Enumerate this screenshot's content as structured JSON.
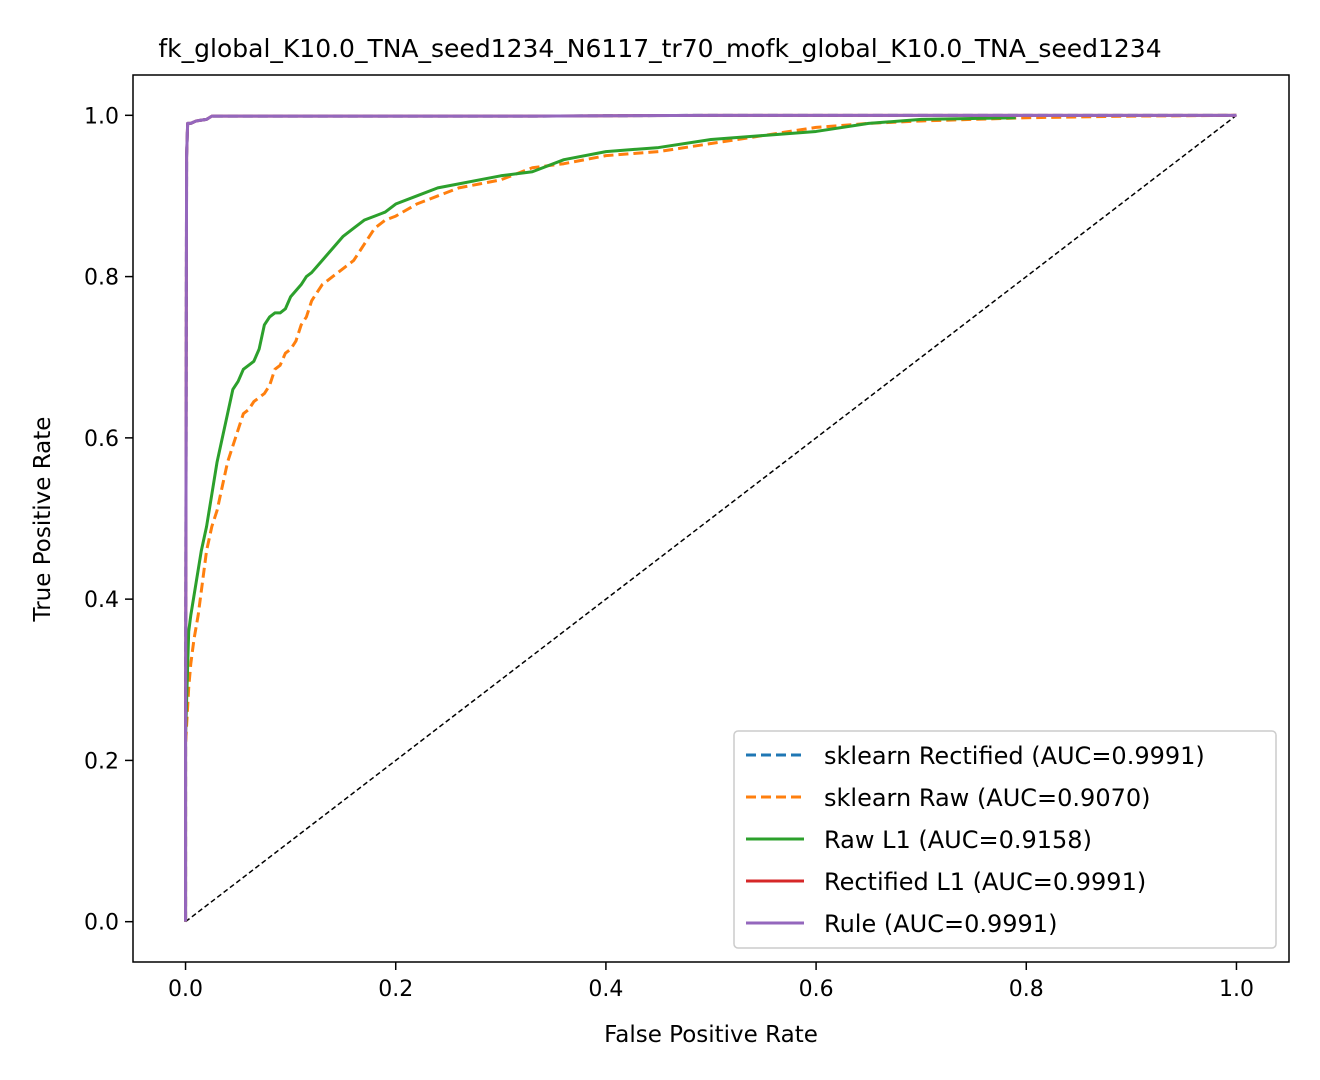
{
  "chart_data": {
    "type": "line",
    "title": "fk_global_K10.0_TNA_seed1234_N6117_tr70_mofk_global_K10.0_TNA_seed1234",
    "xlabel": "False Positive Rate",
    "ylabel": "True Positive Rate",
    "xlim": [
      -0.05,
      1.05
    ],
    "ylim": [
      -0.05,
      1.05
    ],
    "xticks": [
      "0.0",
      "0.2",
      "0.4",
      "0.6",
      "0.8",
      "1.0"
    ],
    "yticks": [
      "0.0",
      "0.2",
      "0.4",
      "0.6",
      "0.8",
      "1.0"
    ],
    "grid": false,
    "legend_position": "lower-right",
    "diagonal": {
      "x": [
        0,
        1
      ],
      "y": [
        0,
        1
      ],
      "color": "#000000",
      "style": "dashed"
    },
    "series": [
      {
        "name": "sklearn Rectified (AUC=0.9991)",
        "color": "#1f77b4",
        "style": "dashed",
        "x": [
          0,
          0,
          0.001,
          0.002,
          0.005,
          0.01,
          0.02,
          0.025,
          0.1,
          0.33,
          0.5,
          1.0
        ],
        "y": [
          0,
          0.22,
          0.95,
          0.99,
          0.99,
          0.993,
          0.995,
          0.999,
          0.999,
          0.999,
          1.0,
          1.0
        ]
      },
      {
        "name": "sklearn Raw (AUC=0.9070)",
        "color": "#ff7f0e",
        "style": "dashed",
        "x": [
          0,
          0,
          0.003,
          0.005,
          0.008,
          0.012,
          0.016,
          0.02,
          0.025,
          0.03,
          0.035,
          0.04,
          0.045,
          0.05,
          0.055,
          0.06,
          0.065,
          0.07,
          0.075,
          0.08,
          0.085,
          0.09,
          0.095,
          0.1,
          0.105,
          0.11,
          0.115,
          0.12,
          0.13,
          0.14,
          0.15,
          0.16,
          0.17,
          0.18,
          0.19,
          0.2,
          0.22,
          0.24,
          0.26,
          0.28,
          0.3,
          0.33,
          0.36,
          0.4,
          0.45,
          0.5,
          0.55,
          0.6,
          0.65,
          0.7,
          0.75,
          0.8,
          0.9,
          1.0
        ],
        "y": [
          0,
          0.22,
          0.29,
          0.32,
          0.35,
          0.38,
          0.42,
          0.46,
          0.49,
          0.51,
          0.54,
          0.57,
          0.59,
          0.61,
          0.63,
          0.635,
          0.645,
          0.65,
          0.655,
          0.665,
          0.685,
          0.69,
          0.705,
          0.71,
          0.72,
          0.74,
          0.75,
          0.77,
          0.79,
          0.8,
          0.81,
          0.82,
          0.84,
          0.86,
          0.87,
          0.875,
          0.89,
          0.9,
          0.91,
          0.915,
          0.92,
          0.935,
          0.94,
          0.95,
          0.955,
          0.965,
          0.975,
          0.985,
          0.99,
          0.993,
          0.995,
          0.997,
          0.999,
          1.0
        ]
      },
      {
        "name": "Raw L1 (AUC=0.9158)",
        "color": "#2ca02c",
        "style": "solid",
        "x": [
          0,
          0,
          0.003,
          0.005,
          0.01,
          0.015,
          0.02,
          0.025,
          0.03,
          0.035,
          0.04,
          0.045,
          0.05,
          0.055,
          0.06,
          0.065,
          0.07,
          0.075,
          0.08,
          0.085,
          0.09,
          0.095,
          0.1,
          0.11,
          0.115,
          0.12,
          0.13,
          0.14,
          0.15,
          0.16,
          0.17,
          0.18,
          0.19,
          0.2,
          0.22,
          0.24,
          0.26,
          0.28,
          0.3,
          0.33,
          0.36,
          0.4,
          0.45,
          0.5,
          0.55,
          0.6,
          0.65,
          0.7,
          0.79
        ],
        "y": [
          0,
          0.23,
          0.36,
          0.38,
          0.42,
          0.46,
          0.49,
          0.53,
          0.57,
          0.6,
          0.63,
          0.66,
          0.67,
          0.685,
          0.69,
          0.695,
          0.71,
          0.74,
          0.75,
          0.755,
          0.755,
          0.76,
          0.775,
          0.79,
          0.8,
          0.805,
          0.82,
          0.835,
          0.85,
          0.86,
          0.87,
          0.875,
          0.88,
          0.89,
          0.9,
          0.91,
          0.915,
          0.92,
          0.925,
          0.93,
          0.945,
          0.955,
          0.96,
          0.97,
          0.975,
          0.98,
          0.99,
          0.995,
          0.997
        ]
      },
      {
        "name": "Rectified L1 (AUC=0.9991)",
        "color": "#d62728",
        "style": "solid",
        "x": [
          0,
          0,
          0.001,
          0.002,
          0.005,
          0.01,
          0.02,
          0.025,
          0.1,
          0.33,
          0.5,
          1.0
        ],
        "y": [
          0,
          0.22,
          0.95,
          0.99,
          0.99,
          0.993,
          0.995,
          0.999,
          0.999,
          0.999,
          1.0,
          1.0
        ]
      },
      {
        "name": "Rule (AUC=0.9991)",
        "color": "#9467bd",
        "style": "solid",
        "x": [
          0,
          0,
          0.001,
          0.002,
          0.005,
          0.01,
          0.02,
          0.025,
          0.1,
          0.33,
          0.5,
          1.0
        ],
        "y": [
          0,
          0.22,
          0.95,
          0.99,
          0.99,
          0.993,
          0.995,
          0.999,
          0.999,
          0.999,
          1.0,
          1.0
        ]
      }
    ]
  }
}
